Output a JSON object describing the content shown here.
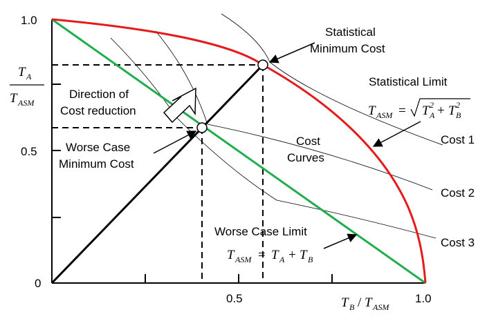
{
  "axes": {
    "y_tick_top": "1.0",
    "y_tick_mid": "0.5",
    "origin": "0",
    "x_tick_mid": "0.5",
    "x_tick_right": "1.0",
    "y_label_num": "T",
    "y_label_num_sub": "A",
    "y_label_den": "T",
    "y_label_den_sub": "ASM",
    "x_label_a": "T",
    "x_label_a_sub": "B",
    "x_label_slash": "/",
    "x_label_b": "T",
    "x_label_b_sub": "ASM"
  },
  "annotations": {
    "statistical_min_cost_l1": "Statistical",
    "statistical_min_cost_l2": "Minimum Cost",
    "statistical_limit": "Statistical Limit",
    "direction_l1": "Direction of",
    "direction_l2": "Cost reduction",
    "worse_min_cost_l1": "Worse Case",
    "worse_min_cost_l2": "Minimum Cost",
    "cost_curves_l1": "Cost",
    "cost_curves_l2": "Curves",
    "cost1": "Cost 1",
    "cost2": "Cost 2",
    "cost3": "Cost 3",
    "worse_case_limit": "Worse Case Limit"
  },
  "formulas": {
    "stat_lhs": "T",
    "stat_lhs_sub": "ASM",
    "stat_eq": "=",
    "stat_term_a": "T",
    "stat_term_a_sub": "A",
    "stat_term_a_sup": "2",
    "stat_plus": "+",
    "stat_term_b": "T",
    "stat_term_b_sub": "B",
    "stat_term_b_sup": "2",
    "worse_lhs": "T",
    "worse_lhs_sub": "ASM",
    "worse_eq": "=",
    "worse_a": "T",
    "worse_a_sub": "A",
    "worse_plus": "+",
    "worse_b": "T",
    "worse_b_sub": "B"
  },
  "colors": {
    "statistical_limit_curve": "#e41b1b",
    "worse_case_limit_line": "#1fae4b",
    "axes": "#000000",
    "cost_curves": "#000000"
  }
}
